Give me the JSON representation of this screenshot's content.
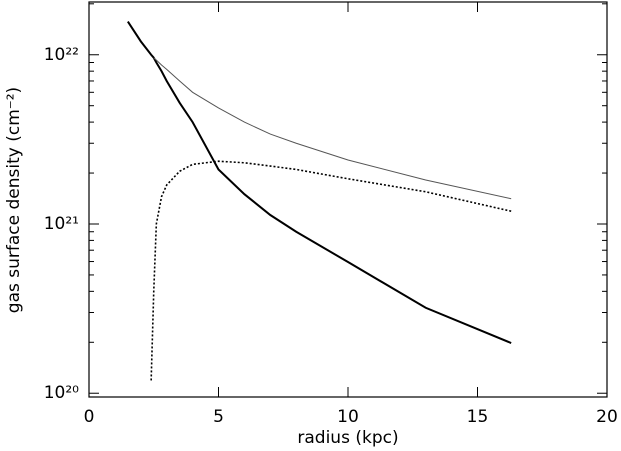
{
  "chart_data": {
    "type": "line",
    "x_label": "radius (kpc)",
    "y_label": "gas surface density (cm⁻²)",
    "x": [
      1.5,
      2,
      2.4,
      2.5,
      2.6,
      2.8,
      3,
      3.5,
      4,
      5,
      6,
      7,
      8,
      10,
      13,
      16.3
    ],
    "series": [
      {
        "color": "#000000",
        "width": 2,
        "dash": "none",
        "values": [
          1.57e+22,
          1.2e+22,
          1e+22,
          9.6e+21,
          9e+21,
          8e+21,
          7e+21,
          5.2e+21,
          4e+21,
          2.1e+21,
          1.5e+21,
          1.13e+21,
          9e+20,
          5.96e+20,
          3.2e+20,
          1.98e+20
        ]
      },
      {
        "color": "#555555",
        "width": 1,
        "dash": "none",
        "values": [
          null,
          null,
          null,
          9.6e+21,
          9.3e+21,
          8.7e+21,
          8.2e+21,
          7e+21,
          6e+21,
          4.85e+21,
          4e+21,
          3.4e+21,
          3e+21,
          2.39e+21,
          1.82e+21,
          1.41e+21
        ]
      },
      {
        "color": "#000000",
        "width": 1.6,
        "dash": "2,2",
        "values": [
          null,
          null,
          1.19e+20,
          4e+20,
          1e+21,
          1.45e+21,
          1.7e+21,
          2.05e+21,
          2.25e+21,
          2.35e+21,
          2.3e+21,
          2.2e+21,
          2.1e+21,
          1.85e+21,
          1.55e+21,
          1.19e+21
        ]
      }
    ],
    "xlim": [
      0,
      20
    ],
    "xticks": [
      0,
      5,
      10,
      15,
      20
    ],
    "ylim": [
      9.5e+19,
      2.05e+22
    ],
    "ylog": true,
    "yticks": [
      {
        "value": 1e+20,
        "label": "10²⁰"
      },
      {
        "value": 1e+21,
        "label": "10²¹"
      },
      {
        "value": 1e+22,
        "label": "10²²"
      }
    ],
    "yminorticks": [
      2e+20,
      3e+20,
      4e+20,
      5e+20,
      6e+20,
      7e+20,
      8e+20,
      9e+20,
      2e+21,
      3e+21,
      4e+21,
      5e+21,
      6e+21,
      7e+21,
      8e+21,
      9e+21,
      2e+22
    ]
  }
}
